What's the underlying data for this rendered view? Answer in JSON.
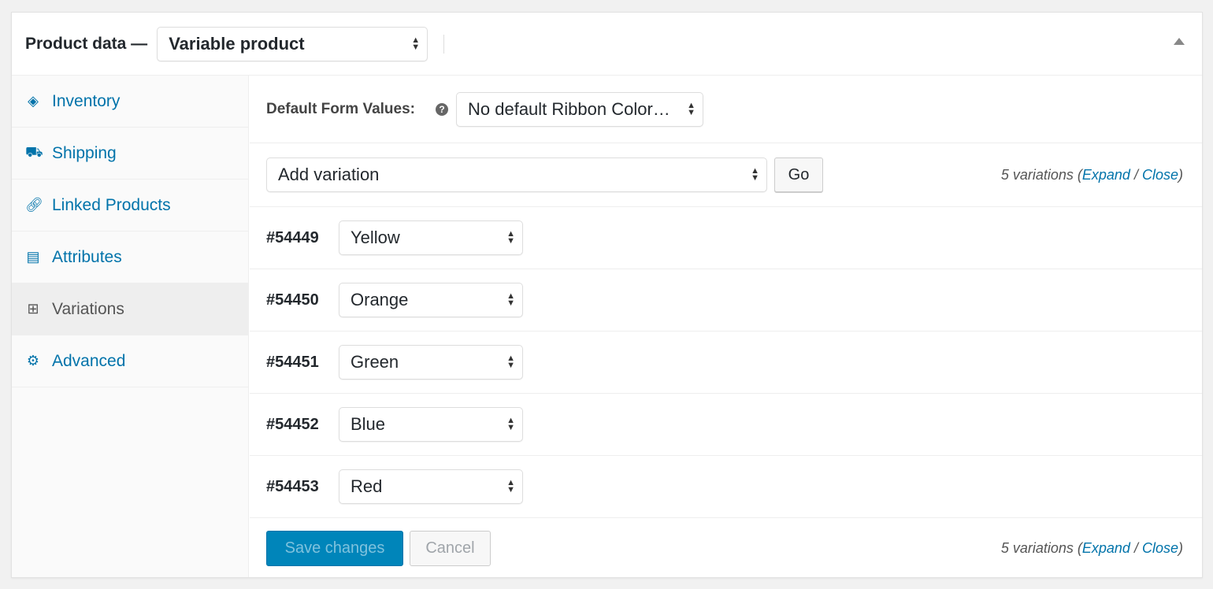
{
  "header": {
    "title": "Product data —",
    "product_type": "Variable product"
  },
  "sidebar": {
    "items": [
      {
        "label": "Inventory",
        "icon": "tag-icon",
        "active": false
      },
      {
        "label": "Shipping",
        "icon": "truck-icon",
        "active": false
      },
      {
        "label": "Linked Products",
        "icon": "link-icon",
        "active": false
      },
      {
        "label": "Attributes",
        "icon": "list-icon",
        "active": false
      },
      {
        "label": "Variations",
        "icon": "grid-icon",
        "active": true
      },
      {
        "label": "Advanced",
        "icon": "gear-icon",
        "active": false
      }
    ]
  },
  "main": {
    "default_label": "Default Form Values:",
    "help": "?",
    "default_value": "No default Ribbon Color…",
    "add_variation": "Add variation",
    "go": "Go",
    "count_text": "5 variations (",
    "expand": "Expand",
    "slash": " / ",
    "close": "Close",
    "paren": ")",
    "variations": [
      {
        "id": "#54449",
        "value": "Yellow"
      },
      {
        "id": "#54450",
        "value": "Orange"
      },
      {
        "id": "#54451",
        "value": "Green"
      },
      {
        "id": "#54452",
        "value": "Blue"
      },
      {
        "id": "#54453",
        "value": "Red"
      }
    ],
    "save": "Save changes",
    "cancel": "Cancel"
  },
  "colors": {
    "accent": "#0085ba",
    "link": "#0073aa"
  }
}
